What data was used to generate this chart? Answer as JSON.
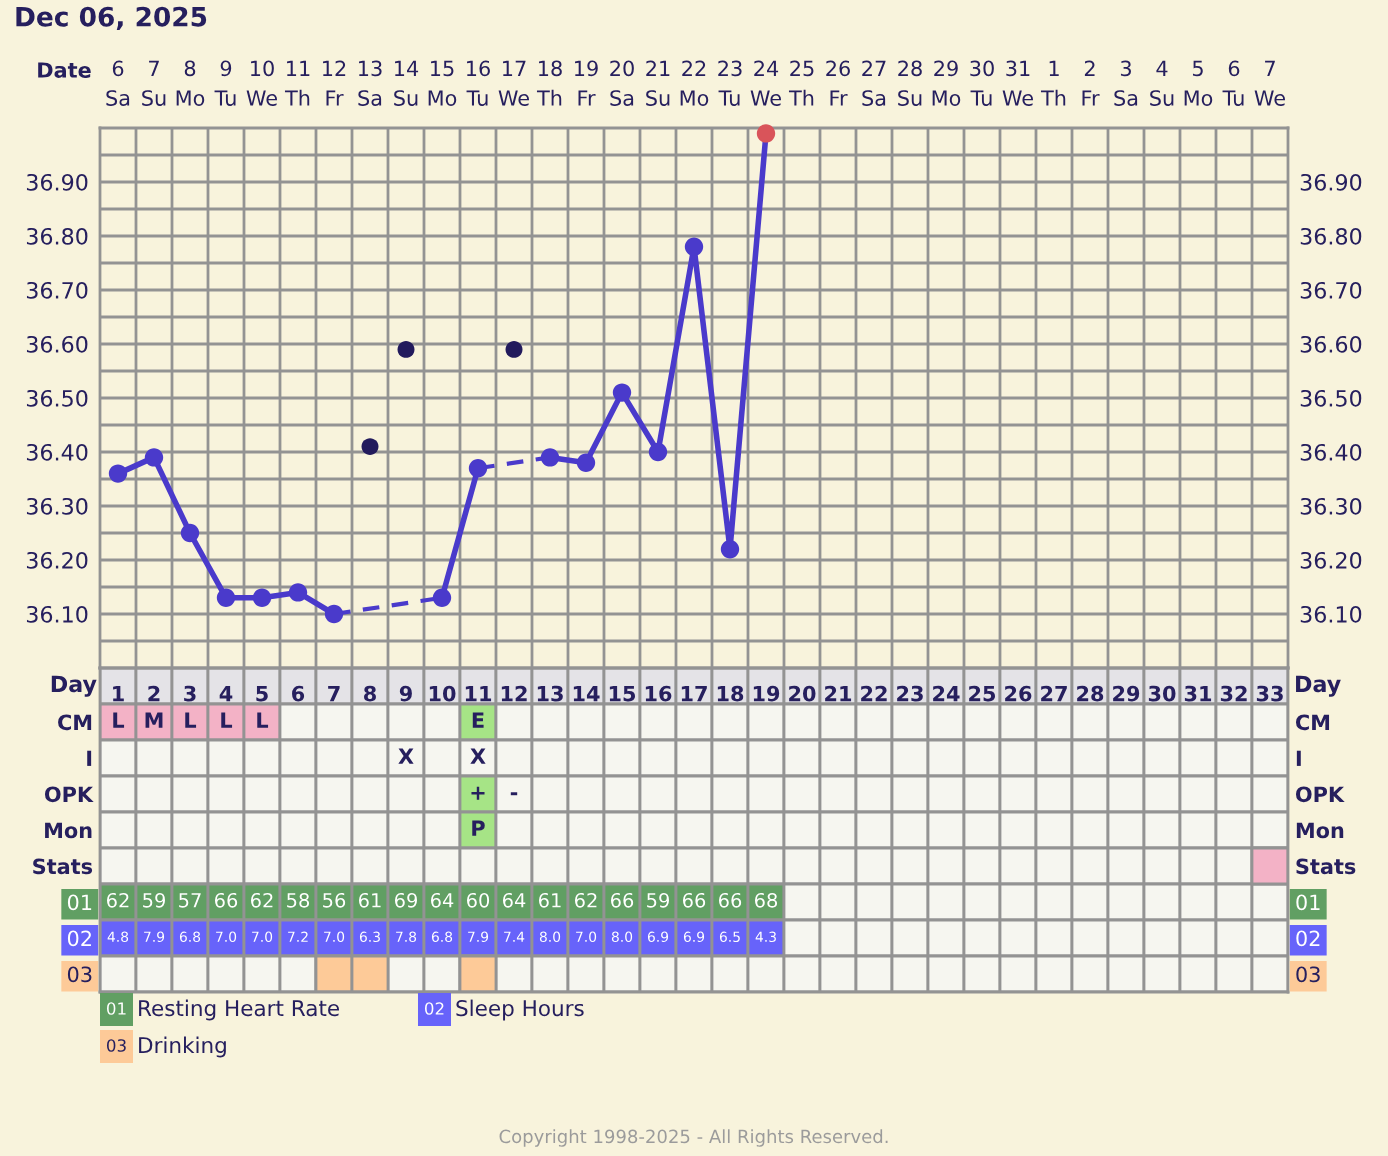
{
  "chart_data": [
    {
      "type": "line",
      "title": "Dec 06, 2025",
      "xlabel": "Date",
      "categories": [
        "6\nSa",
        "7\nSu",
        "8\nMo",
        "9\nTu",
        "10\nWe",
        "11\nTh",
        "12\nFr",
        "13\nSa",
        "14\nSu",
        "15\nMo",
        "16\nTu",
        "17\nWe",
        "18\nTh",
        "19\nFr",
        "20\nSa",
        "21\nSu",
        "22\nMo",
        "23\nTu",
        "24\nWe",
        "25\nTh",
        "26\nFr",
        "27\nSa",
        "28\nSu",
        "29\nMo",
        "30\nTu",
        "31\nWe",
        "1\nTh",
        "2\nFr",
        "3\nSa",
        "4\nSu",
        "5\nMo",
        "6\nTu",
        "7\nWe"
      ],
      "series": [
        {
          "type": "line",
          "color": "#4a3acb",
          "marker": "circle",
          "colors": [
            "#4a3acb",
            "#4a3acb",
            "#4a3acb",
            "#4a3acb",
            "#4a3acb",
            "#4a3acb",
            "#4a3acb",
            null,
            null,
            "#4a3acb",
            "#4a3acb",
            null,
            "#4a3acb",
            "#4a3acb",
            "#4a3acb",
            "#4a3acb",
            "#4a3acb",
            "#4a3acb",
            "#d9545a",
            null,
            null,
            null,
            null,
            null,
            null,
            null,
            null,
            null,
            null,
            null,
            null,
            null,
            null
          ],
          "values": [
            36.36,
            36.39,
            36.25,
            36.13,
            36.13,
            36.14,
            36.1,
            null,
            null,
            36.13,
            36.37,
            null,
            36.39,
            36.38,
            36.51,
            36.4,
            36.78,
            36.22,
            36.99,
            null,
            null,
            null,
            null,
            null,
            null,
            null,
            null,
            null,
            null,
            null,
            null,
            null,
            null
          ]
        },
        {
          "type": "scatter",
          "color": "#221a5c",
          "marker": "circle",
          "values": [
            null,
            null,
            null,
            null,
            null,
            null,
            null,
            36.41,
            36.59,
            null,
            null,
            36.59,
            null,
            null,
            null,
            null,
            null,
            null,
            null,
            null,
            null,
            null,
            null,
            null,
            null,
            null,
            null,
            null,
            null,
            null,
            null,
            null,
            null
          ]
        }
      ],
      "ylim": [
        36.0,
        37.0
      ],
      "yticks": [
        {
          "value": 36.05,
          "label": null
        },
        {
          "value": 36.1,
          "label": "36.10"
        },
        {
          "value": 36.15,
          "label": null
        },
        {
          "value": 36.2,
          "label": "36.20"
        },
        {
          "value": 36.25,
          "label": null
        },
        {
          "value": 36.3,
          "label": "36.30"
        },
        {
          "value": 36.35,
          "label": null
        },
        {
          "value": 36.4,
          "label": "36.40"
        },
        {
          "value": 36.45,
          "label": null
        },
        {
          "value": 36.5,
          "label": "36.50"
        },
        {
          "value": 36.55,
          "label": null
        },
        {
          "value": 36.6,
          "label": "36.60"
        },
        {
          "value": 36.65,
          "label": null
        },
        {
          "value": 36.7,
          "label": "36.70"
        },
        {
          "value": 36.75,
          "label": null
        },
        {
          "value": 36.8,
          "label": "36.80"
        },
        {
          "value": 36.85,
          "label": null
        },
        {
          "value": 36.9,
          "label": "36.90"
        },
        {
          "value": 36.95,
          "label": null
        }
      ],
      "y2lim": [
        36.0,
        37.0
      ],
      "y2ticks": [
        {
          "value": 36.05,
          "label": null
        },
        {
          "value": 36.1,
          "label": "36.10"
        },
        {
          "value": 36.15,
          "label": null
        },
        {
          "value": 36.2,
          "label": "36.20"
        },
        {
          "value": 36.25,
          "label": null
        },
        {
          "value": 36.3,
          "label": "36.30"
        },
        {
          "value": 36.35,
          "label": null
        },
        {
          "value": 36.4,
          "label": "36.40"
        },
        {
          "value": 36.45,
          "label": null
        },
        {
          "value": 36.5,
          "label": "36.50"
        },
        {
          "value": 36.55,
          "label": null
        },
        {
          "value": 36.6,
          "label": "36.60"
        },
        {
          "value": 36.65,
          "label": null
        },
        {
          "value": 36.7,
          "label": "36.70"
        },
        {
          "value": 36.75,
          "label": null
        },
        {
          "value": 36.8,
          "label": "36.80"
        },
        {
          "value": 36.85,
          "label": null
        },
        {
          "value": 36.9,
          "label": "36.90"
        },
        {
          "value": 36.95,
          "label": null
        }
      ],
      "grid": true,
      "annotations": [
        "Copyright 1998-2025 - All Rights Reserved."
      ]
    },
    {
      "type": "heatmap",
      "xlabel": "Day",
      "categories": [
        "1",
        "2",
        "3",
        "4",
        "5",
        "6",
        "7",
        "8",
        "9",
        "10",
        "11",
        "12",
        "13",
        "14",
        "15",
        "16",
        "17",
        "18",
        "19",
        "20",
        "21",
        "22",
        "23",
        "24",
        "25",
        "26",
        "27",
        "28",
        "29",
        "30",
        "31",
        "32",
        "33"
      ],
      "y_categories": [
        "CM",
        "I",
        "OPK",
        "Mon",
        "Stats",
        "01",
        "02",
        "03"
      ],
      "y2_categories": [
        "CM",
        "I",
        "OPK",
        "Mon",
        "Stats",
        "01",
        "02",
        "03"
      ],
      "cells": [
        [
          null,
          null,
          null,
          null,
          null,
          null,
          null,
          null,
          null,
          null,
          null,
          null,
          null,
          null,
          null,
          null,
          null,
          null,
          null,
          null,
          null,
          null,
          null,
          null,
          null,
          null,
          null,
          null,
          null,
          null,
          null,
          null,
          null
        ],
        [
          null,
          null,
          null,
          null,
          null,
          null,
          null,
          null,
          null,
          null,
          null,
          null,
          null,
          null,
          null,
          null,
          null,
          null,
          null,
          null,
          null,
          null,
          null,
          null,
          null,
          null,
          null,
          null,
          null,
          null,
          null,
          null,
          null
        ],
        [
          null,
          null,
          null,
          null,
          null,
          null,
          null,
          null,
          null,
          null,
          null,
          null,
          null,
          null,
          null,
          null,
          null,
          null,
          null,
          null,
          null,
          null,
          null,
          null,
          null,
          null,
          null,
          null,
          null,
          null,
          null,
          null,
          null
        ],
        [
          null,
          null,
          null,
          null,
          null,
          null,
          null,
          null,
          null,
          null,
          null,
          null,
          null,
          null,
          null,
          null,
          null,
          null,
          null,
          null,
          null,
          null,
          null,
          null,
          null,
          null,
          null,
          null,
          null,
          null,
          null,
          null,
          null
        ],
        [
          null,
          null,
          null,
          null,
          null,
          null,
          null,
          null,
          null,
          null,
          null,
          null,
          null,
          null,
          null,
          null,
          null,
          null,
          null,
          null,
          null,
          null,
          null,
          null,
          null,
          null,
          null,
          null,
          null,
          null,
          null,
          null,
          null
        ],
        [
          null,
          null,
          null,
          null,
          null,
          null,
          null,
          null,
          null,
          null,
          null,
          null,
          null,
          null,
          null,
          null,
          null,
          null,
          null,
          null,
          null,
          null,
          null,
          null,
          null,
          null,
          null,
          null,
          null,
          null,
          null,
          null,
          null
        ],
        [
          null,
          null,
          null,
          null,
          null,
          null,
          null,
          null,
          null,
          null,
          null,
          null,
          null,
          null,
          null,
          null,
          null,
          null,
          null,
          null,
          null,
          null,
          null,
          null,
          null,
          null,
          null,
          null,
          null,
          null,
          null,
          null,
          null
        ],
        [
          null,
          null,
          null,
          null,
          null,
          null,
          null,
          null,
          null,
          null,
          null,
          null,
          null,
          null,
          null,
          null,
          null,
          null,
          null,
          null,
          null,
          null,
          null,
          null,
          null,
          null,
          null,
          null,
          null,
          null,
          null,
          null,
          null
        ]
      ],
      "cell_labels": [
        [
          "L",
          "M",
          "L",
          "L",
          "L",
          null,
          null,
          null,
          null,
          null,
          "E",
          null,
          null,
          null,
          null,
          null,
          null,
          null,
          null,
          null,
          null,
          null,
          null,
          null,
          null,
          null,
          null,
          null,
          null,
          null,
          null,
          null,
          null
        ],
        [
          null,
          null,
          null,
          null,
          null,
          null,
          null,
          null,
          "X",
          null,
          "X",
          null,
          null,
          null,
          null,
          null,
          null,
          null,
          null,
          null,
          null,
          null,
          null,
          null,
          null,
          null,
          null,
          null,
          null,
          null,
          null,
          null,
          null
        ],
        [
          null,
          null,
          null,
          null,
          null,
          null,
          null,
          null,
          null,
          null,
          "+",
          "-",
          null,
          null,
          null,
          null,
          null,
          null,
          null,
          null,
          null,
          null,
          null,
          null,
          null,
          null,
          null,
          null,
          null,
          null,
          null,
          null,
          null
        ],
        [
          null,
          null,
          null,
          null,
          null,
          null,
          null,
          null,
          null,
          null,
          "P",
          null,
          null,
          null,
          null,
          null,
          null,
          null,
          null,
          null,
          null,
          null,
          null,
          null,
          null,
          null,
          null,
          null,
          null,
          null,
          null,
          null,
          null
        ],
        [
          null,
          null,
          null,
          null,
          null,
          null,
          null,
          null,
          null,
          null,
          null,
          null,
          null,
          null,
          null,
          null,
          null,
          null,
          null,
          null,
          null,
          null,
          null,
          null,
          null,
          null,
          null,
          null,
          null,
          null,
          null,
          null,
          null
        ],
        [
          "62",
          "59",
          "57",
          "66",
          "62",
          "58",
          "56",
          "61",
          "69",
          "64",
          "60",
          "64",
          "61",
          "62",
          "66",
          "59",
          "66",
          "66",
          "68",
          null,
          null,
          null,
          null,
          null,
          null,
          null,
          null,
          null,
          null,
          null,
          null,
          null,
          null
        ],
        [
          "4.8",
          "7.9",
          "6.8",
          "7.0",
          "7.0",
          "7.2",
          "7.0",
          "6.3",
          "7.8",
          "6.8",
          "7.9",
          "7.4",
          "8.0",
          "7.0",
          "8.0",
          "6.9",
          "6.9",
          "6.5",
          "4.3",
          null,
          null,
          null,
          null,
          null,
          null,
          null,
          null,
          null,
          null,
          null,
          null,
          null,
          null
        ],
        [
          null,
          null,
          null,
          null,
          null,
          null,
          null,
          null,
          null,
          null,
          null,
          null,
          null,
          null,
          null,
          null,
          null,
          null,
          null,
          null,
          null,
          null,
          null,
          null,
          null,
          null,
          null,
          null,
          null,
          null,
          null,
          null,
          null
        ]
      ],
      "colors": [
        [
          "#f3b2c6",
          "#f3b2c6",
          "#f3b2c6",
          "#f3b2c6",
          "#f3b2c6",
          null,
          null,
          null,
          null,
          null,
          "#a6e486",
          null,
          null,
          null,
          null,
          null,
          null,
          null,
          null,
          null,
          null,
          null,
          null,
          null,
          null,
          null,
          null,
          null,
          null,
          null,
          null,
          null,
          null
        ],
        [
          null,
          null,
          null,
          null,
          null,
          null,
          null,
          null,
          null,
          null,
          null,
          null,
          null,
          null,
          null,
          null,
          null,
          null,
          null,
          null,
          null,
          null,
          null,
          null,
          null,
          null,
          null,
          null,
          null,
          null,
          null,
          null,
          null
        ],
        [
          null,
          null,
          null,
          null,
          null,
          null,
          null,
          null,
          null,
          null,
          "#a6e486",
          null,
          null,
          null,
          null,
          null,
          null,
          null,
          null,
          null,
          null,
          null,
          null,
          null,
          null,
          null,
          null,
          null,
          null,
          null,
          null,
          null,
          null
        ],
        [
          null,
          null,
          null,
          null,
          null,
          null,
          null,
          null,
          null,
          null,
          "#a6e486",
          null,
          null,
          null,
          null,
          null,
          null,
          null,
          null,
          null,
          null,
          null,
          null,
          null,
          null,
          null,
          null,
          null,
          null,
          null,
          null,
          null,
          null
        ],
        [
          null,
          null,
          null,
          null,
          null,
          null,
          null,
          null,
          null,
          null,
          null,
          null,
          null,
          null,
          null,
          null,
          null,
          null,
          null,
          null,
          null,
          null,
          null,
          null,
          null,
          null,
          null,
          null,
          null,
          null,
          null,
          null,
          "#f3b2c6"
        ],
        [
          "#619f63",
          "#619f63",
          "#619f63",
          "#619f63",
          "#619f63",
          "#619f63",
          "#619f63",
          "#619f63",
          "#619f63",
          "#619f63",
          "#619f63",
          "#619f63",
          "#619f63",
          "#619f63",
          "#619f63",
          "#619f63",
          "#619f63",
          "#619f63",
          "#619f63",
          null,
          null,
          null,
          null,
          null,
          null,
          null,
          null,
          null,
          null,
          null,
          null,
          null,
          null
        ],
        [
          "#6763fa",
          "#6763fa",
          "#6763fa",
          "#6763fa",
          "#6763fa",
          "#6763fa",
          "#6763fa",
          "#6763fa",
          "#6763fa",
          "#6763fa",
          "#6763fa",
          "#6763fa",
          "#6763fa",
          "#6763fa",
          "#6763fa",
          "#6763fa",
          "#6763fa",
          "#6763fa",
          "#6763fa",
          null,
          null,
          null,
          null,
          null,
          null,
          null,
          null,
          null,
          null,
          null,
          null,
          null,
          null
        ],
        [
          null,
          null,
          null,
          null,
          null,
          null,
          "#fdca98",
          "#fdca98",
          null,
          null,
          "#fdca98",
          null,
          null,
          null,
          null,
          null,
          null,
          null,
          null,
          null,
          null,
          null,
          null,
          null,
          null,
          null,
          null,
          null,
          null,
          null,
          null,
          null,
          null
        ]
      ],
      "annotations": [
        "Resting Heart Rate",
        "Sleep Hours",
        "Drinking"
      ]
    }
  ]
}
